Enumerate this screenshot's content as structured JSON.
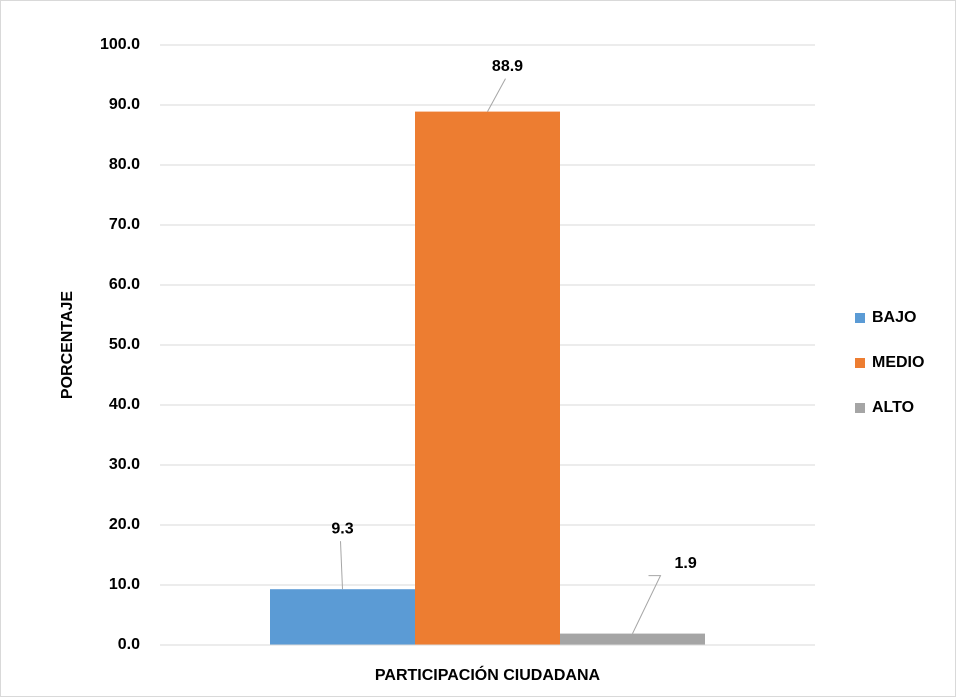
{
  "chart_data": {
    "type": "bar",
    "categories": [
      "PARTICIPACIÓN CIUDADANA"
    ],
    "y_label": "PORCENTAJE",
    "series": [
      {
        "name": "BAJO",
        "color": "#5b9bd5",
        "values": [
          9.3
        ]
      },
      {
        "name": "MEDIO",
        "color": "#ed7d31",
        "values": [
          88.9
        ]
      },
      {
        "name": "ALTO",
        "color": "#a5a5a5",
        "values": [
          1.9
        ]
      }
    ],
    "ylim": [
      0,
      100
    ],
    "yticks": [
      {
        "value": 0,
        "label": "0.0"
      },
      {
        "value": 10,
        "label": "10.0"
      },
      {
        "value": 20,
        "label": "20.0"
      },
      {
        "value": 30,
        "label": "30.0"
      },
      {
        "value": 40,
        "label": "40.0"
      },
      {
        "value": 50,
        "label": "50.0"
      },
      {
        "value": 60,
        "label": "60.0"
      },
      {
        "value": 70,
        "label": "70.0"
      },
      {
        "value": 80,
        "label": "80.0"
      },
      {
        "value": 90,
        "label": "90.0"
      },
      {
        "value": 100,
        "label": "100.0"
      }
    ],
    "grid": true,
    "legend": "right"
  }
}
